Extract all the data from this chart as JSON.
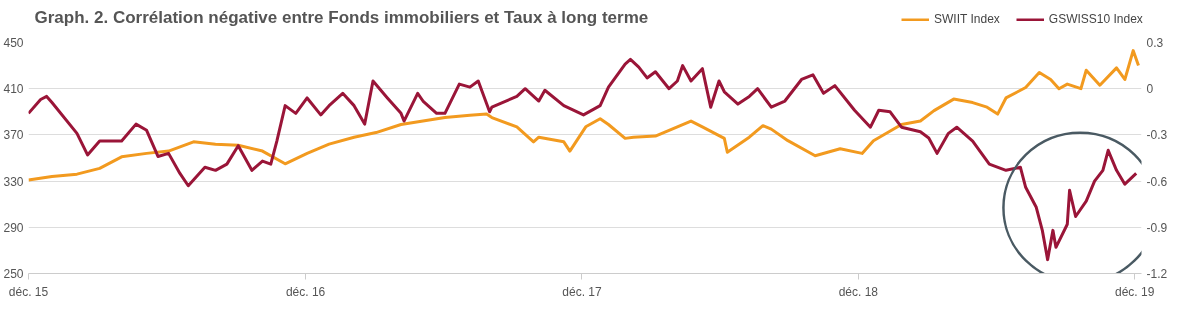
{
  "chart_data": {
    "type": "line",
    "title": "Graph. 2. Corrélation négative entre Fonds immobiliers et Taux à long terme",
    "xlim": [
      "2015-12-01",
      "2019-12-10"
    ],
    "xticks": [
      {
        "value": "2015-12",
        "label": "déc. 15"
      },
      {
        "value": "2016-12",
        "label": "déc. 16"
      },
      {
        "value": "2017-12",
        "label": "déc. 17"
      },
      {
        "value": "2018-12",
        "label": "déc. 18"
      },
      {
        "value": "2019-12",
        "label": "déc. 19"
      }
    ],
    "ylim": [
      250,
      450
    ],
    "yticks": [
      250,
      290,
      330,
      370,
      410,
      450
    ],
    "y2lim": [
      -1.2,
      0.3
    ],
    "y2ticks": [
      -1.2,
      -0.9,
      -0.6,
      -0.3,
      0,
      0.3
    ],
    "grid": "y",
    "legend": "top right",
    "line_style": "solid",
    "series": [
      {
        "name": "SWIIT Index",
        "color": "#f29a1f",
        "x": [
          "2015-12-01",
          "2016-01-01",
          "2016-02-03",
          "2016-03-04",
          "2016-04-02",
          "2016-05-05",
          "2016-06-03",
          "2016-07-06",
          "2016-08-04",
          "2016-09-03",
          "2016-10-05",
          "2016-11-04",
          "2016-12-03",
          "2017-01-01",
          "2017-02-03",
          "2017-03-04",
          "2017-04-06",
          "2017-05-05",
          "2017-06-03",
          "2017-07-06",
          "2017-07-28",
          "2017-08-04",
          "2017-09-06",
          "2017-09-28",
          "2017-10-05",
          "2017-11-07",
          "2017-11-15",
          "2017-12-06",
          "2017-12-25",
          "2018-01-05",
          "2018-01-27",
          "2018-02-07",
          "2018-03-08",
          "2018-04-06",
          "2018-04-24",
          "2018-05-09",
          "2018-06-07",
          "2018-06-11",
          "2018-07-10",
          "2018-07-28",
          "2018-08-08",
          "2018-08-30",
          "2018-10-05",
          "2018-11-07",
          "2018-12-06",
          "2018-12-21",
          "2019-01-27",
          "2019-02-21",
          "2019-03-11",
          "2019-04-06",
          "2019-05-01",
          "2019-05-20",
          "2019-06-03",
          "2019-06-14",
          "2019-07-10",
          "2019-07-28",
          "2019-08-12",
          "2019-08-23",
          "2019-09-03",
          "2019-09-21",
          "2019-09-28",
          "2019-10-16",
          "2019-11-07",
          "2019-11-18",
          "2019-11-29",
          "2019-12-06"
        ],
        "values": [
          331,
          334,
          336,
          341,
          351,
          354,
          356,
          364,
          362,
          361,
          356,
          345,
          354,
          362,
          368,
          372,
          379,
          382,
          385,
          387,
          388,
          385,
          377,
          364,
          368,
          364,
          356,
          377,
          384,
          379,
          367,
          368,
          369,
          377,
          382,
          377,
          367,
          355,
          368,
          378,
          375,
          365,
          352,
          358,
          354,
          365,
          379,
          382,
          391,
          401,
          398,
          394,
          388,
          402,
          411,
          424,
          418,
          410,
          414,
          410,
          426,
          413,
          428,
          418,
          443,
          430
        ]
      },
      {
        "name": "GSWISS10 Index",
        "color": "#9a1538",
        "axis": "y2",
        "x": [
          "2015-12-01",
          "2015-12-17",
          "2015-12-25",
          "2016-01-01",
          "2016-02-03",
          "2016-02-17",
          "2016-03-04",
          "2016-04-02",
          "2016-04-21",
          "2016-05-05",
          "2016-05-20",
          "2016-06-03",
          "2016-06-18",
          "2016-06-29",
          "2016-07-21",
          "2016-08-04",
          "2016-08-19",
          "2016-09-03",
          "2016-09-21",
          "2016-10-05",
          "2016-10-16",
          "2016-10-24",
          "2016-11-04",
          "2016-11-18",
          "2016-12-03",
          "2016-12-21",
          "2017-01-01",
          "2017-01-19",
          "2017-02-03",
          "2017-02-17",
          "2017-02-28",
          "2017-03-19",
          "2017-04-06",
          "2017-04-10",
          "2017-04-28",
          "2017-05-05",
          "2017-05-23",
          "2017-06-03",
          "2017-06-22",
          "2017-07-06",
          "2017-07-17",
          "2017-08-01",
          "2017-08-04",
          "2017-09-06",
          "2017-09-17",
          "2017-10-05",
          "2017-10-13",
          "2017-11-07",
          "2017-12-03",
          "2017-12-25",
          "2018-01-05",
          "2018-01-27",
          "2018-02-03",
          "2018-02-14",
          "2018-02-25",
          "2018-03-08",
          "2018-03-26",
          "2018-04-06",
          "2018-04-13",
          "2018-04-24",
          "2018-05-09",
          "2018-05-20",
          "2018-05-31",
          "2018-06-07",
          "2018-06-25",
          "2018-07-10",
          "2018-07-21",
          "2018-08-08",
          "2018-08-26",
          "2018-09-17",
          "2018-10-02",
          "2018-10-16",
          "2018-10-31",
          "2018-11-26",
          "2018-12-17",
          "2018-12-28",
          "2019-01-12",
          "2019-01-27",
          "2019-02-21",
          "2019-03-04",
          "2019-03-15",
          "2019-03-30",
          "2019-04-10",
          "2019-05-01",
          "2019-05-23",
          "2019-06-14",
          "2019-07-03",
          "2019-07-10",
          "2019-07-24",
          "2019-08-01",
          "2019-08-08",
          "2019-08-15",
          "2019-08-19",
          "2019-09-03",
          "2019-09-06",
          "2019-09-14",
          "2019-09-28",
          "2019-10-09",
          "2019-10-20",
          "2019-10-27",
          "2019-11-07",
          "2019-11-18",
          "2019-12-03"
        ],
        "values": [
          -0.16,
          -0.07,
          -0.05,
          -0.09,
          -0.29,
          -0.43,
          -0.34,
          -0.34,
          -0.23,
          -0.27,
          -0.44,
          -0.42,
          -0.55,
          -0.63,
          -0.51,
          -0.53,
          -0.49,
          -0.37,
          -0.53,
          -0.47,
          -0.49,
          -0.34,
          -0.11,
          -0.16,
          -0.06,
          -0.17,
          -0.11,
          -0.03,
          -0.11,
          -0.23,
          0.05,
          -0.06,
          -0.16,
          -0.21,
          -0.03,
          -0.08,
          -0.16,
          -0.16,
          0.03,
          0.01,
          0.05,
          -0.15,
          -0.12,
          -0.05,
          0.0,
          -0.08,
          -0.01,
          -0.11,
          -0.17,
          -0.11,
          0.01,
          0.16,
          0.19,
          0.14,
          0.07,
          0.11,
          0.0,
          0.05,
          0.15,
          0.05,
          0.13,
          -0.12,
          0.05,
          -0.02,
          -0.1,
          -0.05,
          0.0,
          -0.12,
          -0.08,
          0.06,
          0.09,
          -0.03,
          0.02,
          -0.14,
          -0.25,
          -0.14,
          -0.15,
          -0.25,
          -0.28,
          -0.32,
          -0.42,
          -0.29,
          -0.25,
          -0.34,
          -0.49,
          -0.53,
          -0.51,
          -0.64,
          -0.77,
          -0.92,
          -1.11,
          -0.92,
          -1.03,
          -0.88,
          -0.66,
          -0.83,
          -0.73,
          -0.6,
          -0.53,
          -0.4,
          -0.53,
          -0.62,
          -0.55
        ]
      }
    ]
  }
}
